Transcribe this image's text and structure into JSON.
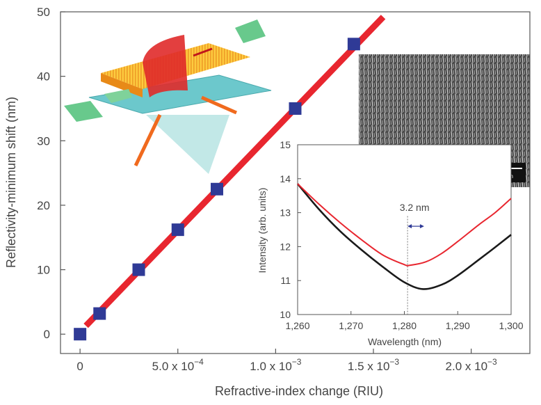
{
  "chart_data": [
    {
      "type": "scatter",
      "xlabel": "Refractive-index change (RIU)",
      "ylabel": "Reflectivity-minimum shift (nm)",
      "xlim": [
        -0.0001,
        0.0023
      ],
      "ylim": [
        -3,
        50
      ],
      "x_ticks": [
        0,
        0.0005,
        0.001,
        0.0015,
        0.002
      ],
      "x_tick_labels": [
        {
          "mant": "0",
          "exp": ""
        },
        {
          "mant": "5.0 x 10",
          "exp": "−4"
        },
        {
          "mant": "1.0 x 10",
          "exp": "−3"
        },
        {
          "mant": "1.5 x 10",
          "exp": "−3"
        },
        {
          "mant": "2.0 x 10",
          "exp": "−3"
        }
      ],
      "y_ticks": [
        0,
        10,
        20,
        30,
        40,
        50
      ],
      "y_tick_labels": [
        "0",
        "10",
        "20",
        "30",
        "40",
        "50"
      ],
      "points": {
        "x": [
          0,
          0.0001,
          0.0003,
          0.0005,
          0.0007,
          0.0011,
          0.0014
        ],
        "y": [
          0,
          3.2,
          10,
          16.2,
          22.5,
          35,
          45
        ],
        "color": "#2f3a96"
      },
      "fit_line": {
        "x": [
          3e-05,
          0.00155
        ],
        "y": [
          1.3,
          49.2
        ],
        "color": "#e8262f"
      },
      "grid": false
    },
    {
      "type": "line",
      "xlabel": "Wavelength (nm)",
      "ylabel": "Intensity (arb. units)",
      "xlim": [
        1260,
        1300
      ],
      "ylim": [
        10,
        15
      ],
      "x_ticks": [
        1260,
        1270,
        1280,
        1290,
        1300
      ],
      "x_tick_labels": [
        "1,260",
        "1,270",
        "1,280",
        "1,290",
        "1,300"
      ],
      "y_ticks": [
        10,
        11,
        12,
        13,
        14,
        15
      ],
      "y_tick_labels": [
        "10",
        "11",
        "12",
        "13",
        "14",
        "15"
      ],
      "series": [
        {
          "color": "#1a1a1a",
          "x": [
            1260,
            1264,
            1268,
            1272,
            1276,
            1280,
            1283.5,
            1287,
            1290,
            1294,
            1297,
            1300
          ],
          "y": [
            13.85,
            13.1,
            12.45,
            11.9,
            11.4,
            10.95,
            10.75,
            10.88,
            11.15,
            11.62,
            11.98,
            12.35
          ]
        },
        {
          "color": "#e8262f",
          "x": [
            1260,
            1264,
            1268,
            1272,
            1276,
            1280,
            1281,
            1284,
            1287,
            1290,
            1294,
            1297,
            1300
          ],
          "y": [
            13.85,
            13.25,
            12.7,
            12.2,
            11.75,
            11.47,
            11.45,
            11.55,
            11.8,
            12.15,
            12.65,
            13.0,
            13.42
          ]
        }
      ],
      "annotation": {
        "text": "3.2 nm",
        "dotted_x": 1280.6,
        "arrow_x": [
          1280.6,
          1283.7
        ],
        "arrow_y": 12.6
      },
      "grid": false
    }
  ],
  "sem_image": {
    "scale_bar_label": "1 μm"
  },
  "schematic": {
    "description_icon": "nanorod-waveguide-schematic"
  }
}
